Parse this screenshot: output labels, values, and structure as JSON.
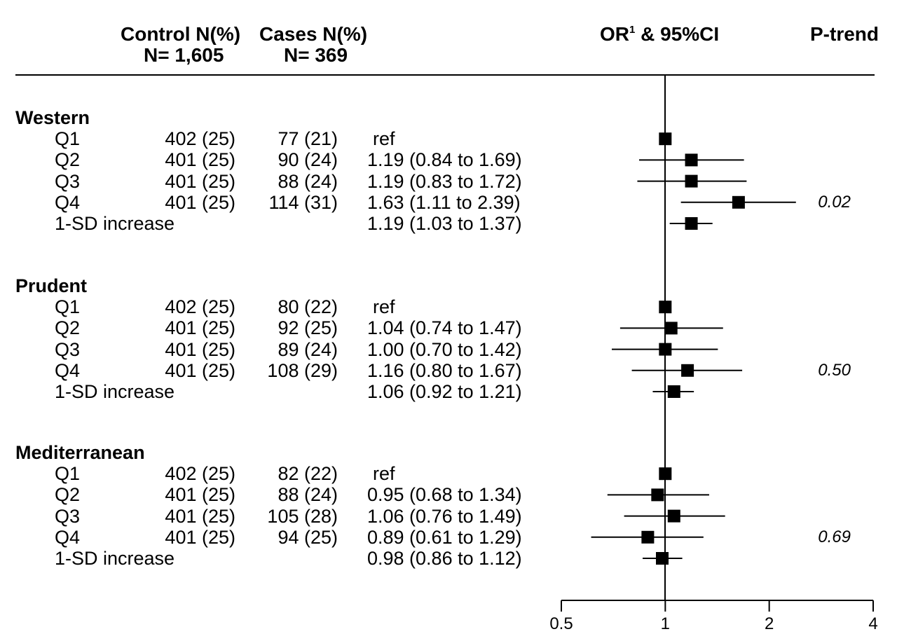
{
  "header": {
    "control_line1": "Control N(%)",
    "control_line2": "N= 1,605",
    "cases_line1": "Cases N(%)",
    "cases_line2": "N= 369",
    "or_label": "OR",
    "or_sup": "1",
    "or_rest": " & 95%CI",
    "ptrend": "P-trend"
  },
  "chart_data": {
    "type": "forest",
    "x_scale": "log2",
    "xlim": [
      0.5,
      4
    ],
    "reference_line": 1,
    "x_ticks": [
      0.5,
      1,
      2,
      4
    ],
    "x_tick_labels": [
      "0.5",
      "1",
      "2",
      "4"
    ],
    "groups": [
      {
        "name": "Western",
        "p_trend": "0.02",
        "rows": [
          {
            "label": "Q1",
            "control": "402 (25)",
            "cases": "77 (21)",
            "text": "ref",
            "or": 1.0,
            "lo": null,
            "hi": null
          },
          {
            "label": "Q2",
            "control": "401 (25)",
            "cases": "90 (24)",
            "text": "1.19 (0.84 to 1.69)",
            "or": 1.19,
            "lo": 0.84,
            "hi": 1.69
          },
          {
            "label": "Q3",
            "control": "401 (25)",
            "cases": "88 (24)",
            "text": "1.19 (0.83 to 1.72)",
            "or": 1.19,
            "lo": 0.83,
            "hi": 1.72
          },
          {
            "label": "Q4",
            "control": "401 (25)",
            "cases": "114 (31)",
            "text": "1.63 (1.11 to 2.39)",
            "or": 1.63,
            "lo": 1.11,
            "hi": 2.39
          },
          {
            "label": "1-SD increase",
            "control": "",
            "cases": "",
            "text": "1.19 (1.03 to 1.37)",
            "or": 1.19,
            "lo": 1.03,
            "hi": 1.37
          }
        ]
      },
      {
        "name": "Prudent",
        "p_trend": "0.50",
        "rows": [
          {
            "label": "Q1",
            "control": "402 (25)",
            "cases": "80 (22)",
            "text": "ref",
            "or": 1.0,
            "lo": null,
            "hi": null
          },
          {
            "label": "Q2",
            "control": "401 (25)",
            "cases": "92 (25)",
            "text": "1.04 (0.74 to 1.47)",
            "or": 1.04,
            "lo": 0.74,
            "hi": 1.47
          },
          {
            "label": "Q3",
            "control": "401 (25)",
            "cases": "89 (24)",
            "text": "1.00 (0.70 to 1.42)",
            "or": 1.0,
            "lo": 0.7,
            "hi": 1.42
          },
          {
            "label": "Q4",
            "control": "401 (25)",
            "cases": "108 (29)",
            "text": "1.16 (0.80 to 1.67)",
            "or": 1.16,
            "lo": 0.8,
            "hi": 1.67
          },
          {
            "label": "1-SD increase",
            "control": "",
            "cases": "",
            "text": "1.06 (0.92 to 1.21)",
            "or": 1.06,
            "lo": 0.92,
            "hi": 1.21
          }
        ]
      },
      {
        "name": "Mediterranean",
        "p_trend": "0.69",
        "rows": [
          {
            "label": "Q1",
            "control": "402 (25)",
            "cases": "82 (22)",
            "text": "ref",
            "or": 1.0,
            "lo": null,
            "hi": null
          },
          {
            "label": "Q2",
            "control": "401 (25)",
            "cases": "88 (24)",
            "text": "0.95 (0.68 to 1.34)",
            "or": 0.95,
            "lo": 0.68,
            "hi": 1.34
          },
          {
            "label": "Q3",
            "control": "401 (25)",
            "cases": "105 (28)",
            "text": "1.06 (0.76 to 1.49)",
            "or": 1.06,
            "lo": 0.76,
            "hi": 1.49
          },
          {
            "label": "Q4",
            "control": "401 (25)",
            "cases": "94 (25)",
            "text": "0.89 (0.61 to 1.29)",
            "or": 0.89,
            "lo": 0.61,
            "hi": 1.29
          },
          {
            "label": "1-SD increase",
            "control": "",
            "cases": "",
            "text": "0.98 (0.86 to 1.12)",
            "or": 0.98,
            "lo": 0.86,
            "hi": 1.12
          }
        ]
      }
    ]
  }
}
